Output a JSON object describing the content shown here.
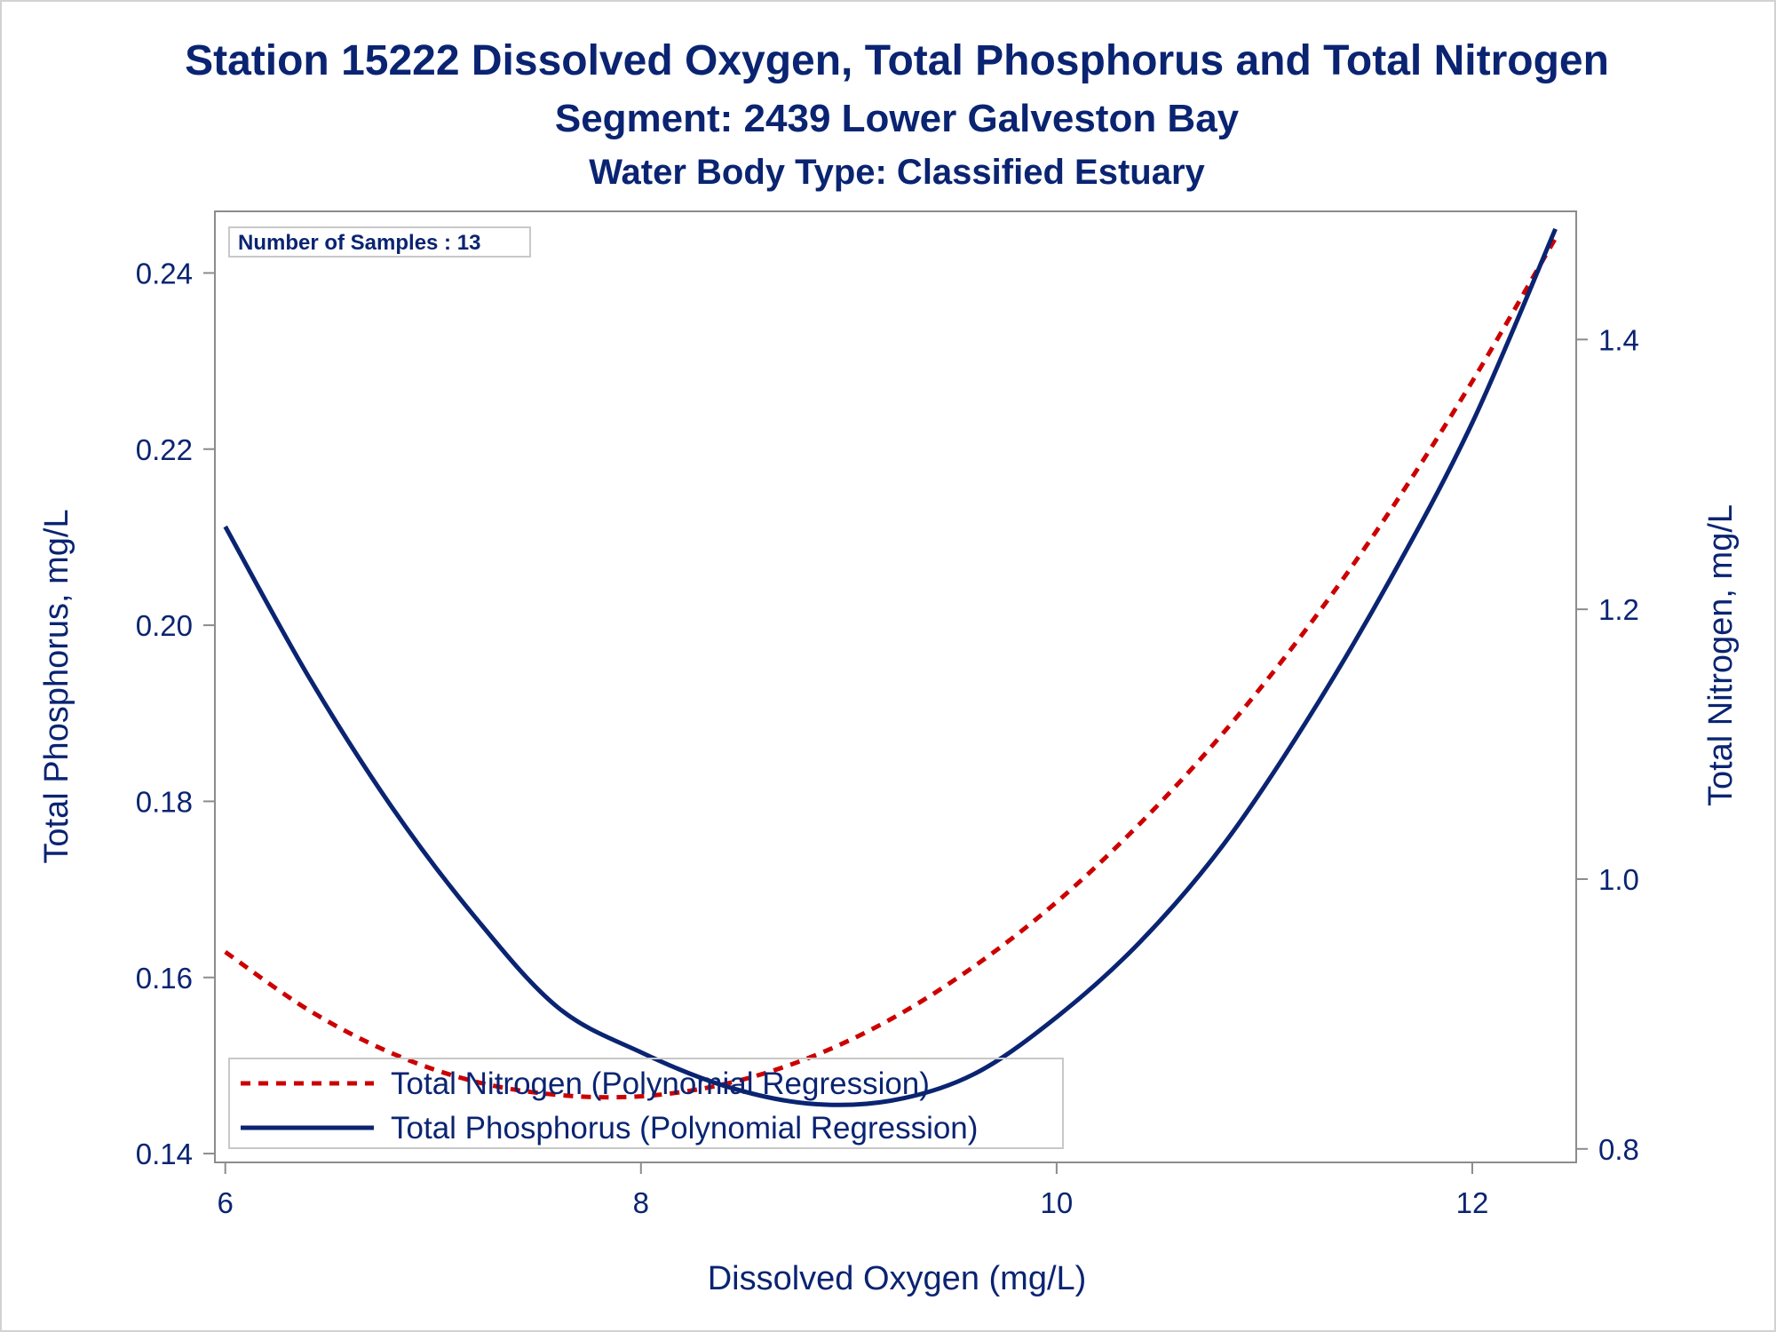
{
  "chart_data": {
    "type": "line",
    "title": "Station 15222  Dissolved Oxygen, Total Phosphorus and Total Nitrogen",
    "subtitle": "Segment: 2439  Lower Galveston Bay",
    "subtitle2": "Water Body Type: Classified Estuary",
    "xlabel": "Dissolved Oxygen (mg/L)",
    "ylabel": "Total Phosphorus, mg/L",
    "y2label": "Total Nitrogen, mg/L",
    "xlim": [
      5.95,
      12.5
    ],
    "ylim": [
      0.139,
      0.247
    ],
    "y2lim": [
      0.79,
      1.495
    ],
    "xticks": [
      6,
      8,
      10,
      12
    ],
    "xtick_labels": [
      "6",
      "8",
      "10",
      "12"
    ],
    "yticks": [
      0.14,
      0.16,
      0.18,
      0.2,
      0.22,
      0.24
    ],
    "ytick_labels": [
      "0.14",
      "0.16",
      "0.18",
      "0.20",
      "0.22",
      "0.24"
    ],
    "y2ticks": [
      0.8,
      1.0,
      1.2,
      1.4
    ],
    "y2tick_labels": [
      "0.8",
      "1.0",
      "1.2",
      "1.4"
    ],
    "grid": false,
    "annotation": "Number of Samples : 13",
    "legend_position": "bottom-left",
    "series": [
      {
        "name": "Total Nitrogen (Polynomial Regression)",
        "axis": "right",
        "color": "#cc0000",
        "style": "dashed",
        "x": [
          6.0,
          6.4,
          6.8,
          7.2,
          7.6,
          8.0,
          8.4,
          8.8,
          9.2,
          9.6,
          10.0,
          10.4,
          10.8,
          11.2,
          11.6,
          12.0,
          12.4
        ],
        "values": [
          0.946,
          0.903,
          0.871,
          0.85,
          0.84,
          0.839,
          0.848,
          0.867,
          0.896,
          0.935,
          0.983,
          1.041,
          1.108,
          1.185,
          1.272,
          1.369,
          1.475
        ]
      },
      {
        "name": "Total Phosphorus (Polynomial Regression)",
        "axis": "left",
        "color": "#0a2472",
        "style": "solid",
        "x": [
          6.0,
          6.4,
          6.8,
          7.2,
          7.6,
          8.0,
          8.4,
          8.8,
          9.2,
          9.6,
          10.0,
          10.4,
          10.8,
          11.2,
          11.6,
          12.0,
          12.4
        ],
        "values": [
          0.2112,
          0.1942,
          0.1794,
          0.1669,
          0.1566,
          0.1515,
          0.1477,
          0.1457,
          0.146,
          0.149,
          0.1555,
          0.164,
          0.175,
          0.189,
          0.205,
          0.223,
          0.245
        ]
      }
    ]
  }
}
